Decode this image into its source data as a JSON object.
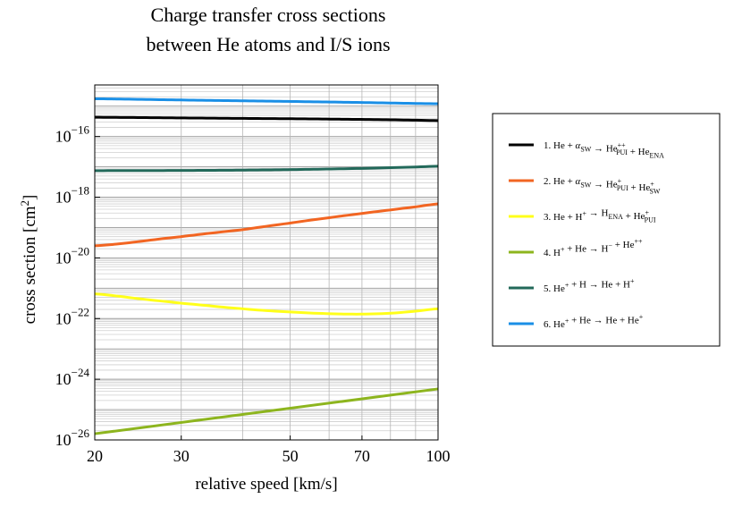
{
  "chart_data": {
    "type": "line",
    "title": [
      "Charge transfer cross sections",
      "between He atoms and I/S ions"
    ],
    "xlabel": "relative speed [km/s]",
    "ylabel": "cross section [cm",
    "ylabel_sup": "2",
    "ylabel_end": "]",
    "x_scale": "log",
    "y_scale": "log",
    "xlim": [
      20,
      100
    ],
    "ylim": [
      1e-26,
      5e-15
    ],
    "x_ticks": [
      20,
      30,
      50,
      70,
      100
    ],
    "x_tick_labels": [
      "20",
      "30",
      "50",
      "70",
      "100"
    ],
    "x_grid": [
      20,
      30,
      40,
      50,
      60,
      70,
      80,
      90,
      100
    ],
    "y_ticks": [
      1e-26,
      1e-24,
      1e-22,
      1e-20,
      1e-18,
      1e-16
    ],
    "y_tick_labels": [
      {
        "base": "10",
        "exp": "−26"
      },
      {
        "base": "10",
        "exp": "−24"
      },
      {
        "base": "10",
        "exp": "−22"
      },
      {
        "base": "10",
        "exp": "−20"
      },
      {
        "base": "10",
        "exp": "−18"
      },
      {
        "base": "10",
        "exp": "−16"
      }
    ],
    "legend_position": "right",
    "series": [
      {
        "name": "1. He + α_SW → He_PUI^++ + He_ENA",
        "color": "#000000",
        "x": [
          20,
          30,
          40,
          50,
          60,
          70,
          80,
          90,
          100
        ],
        "y": [
          4.3e-16,
          4.1e-16,
          3.95e-16,
          3.85e-16,
          3.75e-16,
          3.65e-16,
          3.55e-16,
          3.45e-16,
          3.35e-16
        ]
      },
      {
        "name": "2. He + α_SW → He_PUI^+ + He_SW^+",
        "color": "#f26522",
        "x": [
          20,
          30,
          40,
          50,
          60,
          70,
          80,
          90,
          100
        ],
        "y": [
          2.5e-20,
          5e-20,
          8.5e-20,
          1.4e-19,
          2.1e-19,
          2.9e-19,
          3.8e-19,
          4.8e-19,
          6e-19
        ]
      },
      {
        "name": "3. He + H^+ → H_ENA + He_PUI^+",
        "color": "#ffff1a",
        "x": [
          20,
          25,
          30,
          40,
          50,
          60,
          70,
          80,
          90,
          100
        ],
        "y": [
          6.5e-22,
          4.4e-22,
          3.2e-22,
          2.1e-22,
          1.65e-22,
          1.45e-22,
          1.4e-22,
          1.5e-22,
          1.75e-22,
          2.1e-22
        ]
      },
      {
        "name": "4. H^+ + He → H^− + He^++",
        "color": "#8db51e",
        "x": [
          20,
          100
        ],
        "y": [
          1.6e-26,
          4.8e-25
        ]
      },
      {
        "name": "5. He^+ + H → He + H^+",
        "color": "#22695a",
        "x": [
          20,
          30,
          40,
          50,
          60,
          70,
          80,
          90,
          100
        ],
        "y": [
          7.5e-18,
          7.6e-18,
          7.8e-18,
          8.1e-18,
          8.5e-18,
          8.9e-18,
          9.4e-18,
          9.9e-18,
          1.05e-17
        ]
      },
      {
        "name": "6. He^+ + He → He + He^+",
        "color": "#1a8fe6",
        "x": [
          20,
          30,
          40,
          50,
          60,
          70,
          80,
          90,
          100
        ],
        "y": [
          1.75e-15,
          1.6e-15,
          1.5e-15,
          1.43e-15,
          1.37e-15,
          1.32e-15,
          1.27e-15,
          1.23e-15,
          1.2e-15
        ]
      }
    ],
    "legend": [
      {
        "parts": [
          {
            "t": "1. He + "
          },
          {
            "t": "α",
            "i": true
          },
          {
            "sub": "SW"
          },
          {
            "t": " → He"
          },
          {
            "sup": "++",
            "sub": "PUI"
          },
          {
            "t": " + He"
          },
          {
            "sub": "ENA"
          }
        ]
      },
      {
        "parts": [
          {
            "t": "2. He + "
          },
          {
            "t": "α",
            "i": true
          },
          {
            "sub": "SW"
          },
          {
            "t": " → He"
          },
          {
            "sup": "+",
            "sub": "PUI"
          },
          {
            "t": "  + He"
          },
          {
            "sup": "+",
            "sub": "SW"
          }
        ]
      },
      {
        "parts": [
          {
            "t": "3. He + H"
          },
          {
            "sup": "+"
          },
          {
            "t": " → H"
          },
          {
            "sub": "ENA"
          },
          {
            "t": " + He"
          },
          {
            "sup": "+",
            "sub": "PUI"
          }
        ]
      },
      {
        "parts": [
          {
            "t": "4. H"
          },
          {
            "sup": "+"
          },
          {
            "t": " + He → H"
          },
          {
            "sup": "−"
          },
          {
            "t": "  + He"
          },
          {
            "sup": "++"
          }
        ]
      },
      {
        "parts": [
          {
            "t": "5. He"
          },
          {
            "sup": "+"
          },
          {
            "t": " + H → He + H"
          },
          {
            "sup": "+"
          }
        ]
      },
      {
        "parts": [
          {
            "t": "6. He"
          },
          {
            "sup": "+"
          },
          {
            "t": "  + He → He + He"
          },
          {
            "sup": "+"
          }
        ]
      }
    ]
  }
}
